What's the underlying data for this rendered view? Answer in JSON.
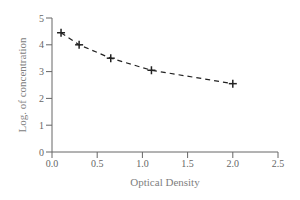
{
  "chart_data": {
    "type": "line",
    "x": [
      0.1,
      0.3,
      0.65,
      1.1,
      2.0
    ],
    "values": [
      4.45,
      4.0,
      3.5,
      3.05,
      2.55
    ],
    "xlabel": "Optical Density",
    "ylabel": "Log. of concentration",
    "xlim": [
      0,
      2.5
    ],
    "ylim": [
      0,
      5
    ],
    "xticks": [
      {
        "value": 0,
        "label": "0.0"
      },
      0.5,
      {
        "value": 1,
        "label": "1.0"
      },
      1.5,
      {
        "value": 2,
        "label": "2.0"
      },
      2.5
    ],
    "yticks": [
      0,
      1,
      2,
      3,
      4,
      5
    ],
    "color": "#222222",
    "marker": "plus",
    "line_style": "dashed",
    "grid": false
  }
}
